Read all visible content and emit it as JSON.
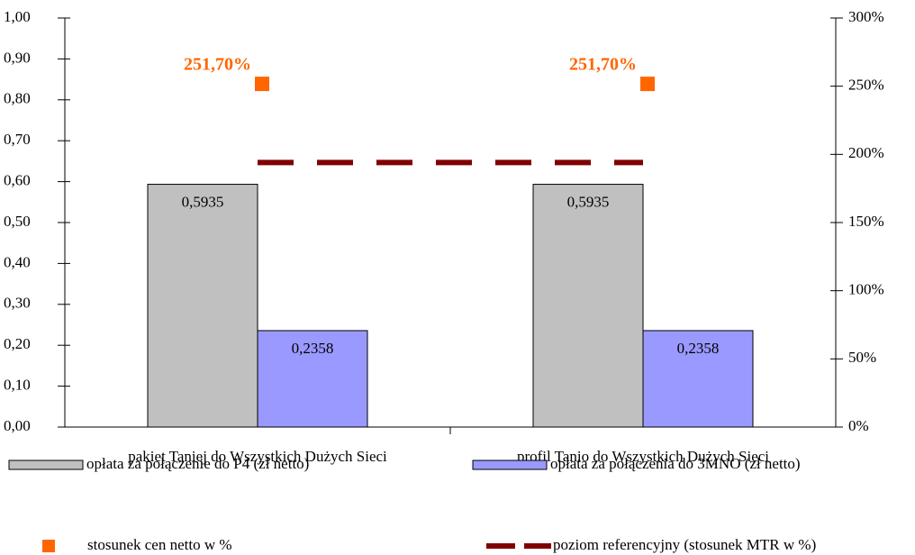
{
  "chart_data": {
    "type": "bar",
    "categories": [
      "pakiet Taniej do Wszystkich Dużych Sieci",
      "profil Tanio do Wszystkich Dużych Sieci"
    ],
    "series": [
      {
        "name": "opłata za połączenie do P4 (zł netto)",
        "type": "bar",
        "color": "#c0c0c0",
        "values": [
          0.5935,
          0.5935
        ],
        "value_labels": [
          "0,5935",
          "0,5935"
        ]
      },
      {
        "name": "opłata za połączenia do 3MNO (zł netto)",
        "type": "bar",
        "color": "#9999ff",
        "values": [
          0.2358,
          0.2358
        ],
        "value_labels": [
          "0,2358",
          "0,2358"
        ]
      },
      {
        "name": "stosunek cen netto w %",
        "type": "scatter",
        "axis": "y2",
        "color": "#ff6600",
        "values": [
          251.7,
          251.7
        ],
        "value_labels": [
          "251,70%",
          "251,70%"
        ]
      },
      {
        "name": "poziom referencyjny (stosunek MTR w %)",
        "type": "line",
        "axis": "y2",
        "color": "#800000",
        "values": [
          194,
          194
        ]
      }
    ],
    "ylim": [
      0,
      1
    ],
    "yticks": [
      {
        "value": 0,
        "label": "0,00"
      },
      {
        "value": 0.1,
        "label": "0,10"
      },
      {
        "value": 0.2,
        "label": "0,20"
      },
      {
        "value": 0.3,
        "label": "0,30"
      },
      {
        "value": 0.4,
        "label": "0,40"
      },
      {
        "value": 0.5,
        "label": "0,50"
      },
      {
        "value": 0.6,
        "label": "0,60"
      },
      {
        "value": 0.7,
        "label": "0,70"
      },
      {
        "value": 0.8,
        "label": "0,80"
      },
      {
        "value": 0.9,
        "label": "0,90"
      },
      {
        "value": 1,
        "label": "1,00"
      }
    ],
    "y2lim": [
      0,
      300
    ],
    "y2ticks": [
      {
        "value": 0,
        "label": "0%"
      },
      {
        "value": 50,
        "label": "50%"
      },
      {
        "value": 100,
        "label": "100%"
      },
      {
        "value": 150,
        "label": "150%"
      },
      {
        "value": 200,
        "label": "200%"
      },
      {
        "value": 250,
        "label": "250%"
      },
      {
        "value": 300,
        "label": "300%"
      }
    ],
    "grid": false
  }
}
